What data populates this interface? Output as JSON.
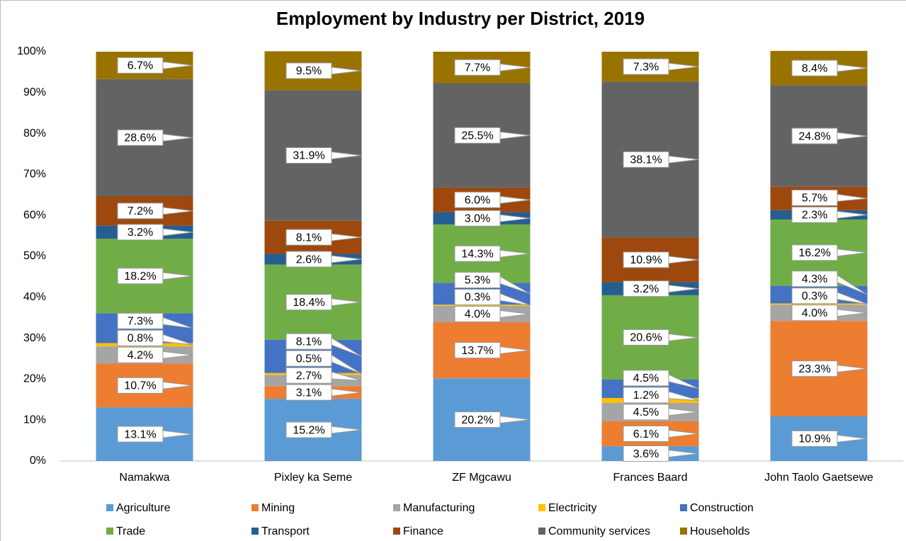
{
  "chart_data": {
    "type": "stacked_bar",
    "title": "Employment by Industry per District, 2019",
    "categories": [
      "Namakwa",
      "Pixley ka Seme",
      "ZF Mgcawu",
      "Frances Baard",
      "John Taolo Gaetsewe"
    ],
    "series": [
      {
        "name": "Agriculture",
        "color": "#5b9bd5",
        "values": [
          13.1,
          15.2,
          20.2,
          3.6,
          10.9
        ],
        "value_labels": [
          "13.1%",
          "15.2%",
          "20.2%",
          "3.6%",
          "10.9%"
        ]
      },
      {
        "name": "Mining",
        "color": "#ed7d31",
        "values": [
          10.7,
          3.1,
          13.7,
          6.1,
          23.3
        ],
        "value_labels": [
          "10.7%",
          "3.1%",
          "13.7%",
          "6.1%",
          "23.3%"
        ]
      },
      {
        "name": "Manufacturing",
        "color": "#a5a5a5",
        "values": [
          4.2,
          2.7,
          4.0,
          4.5,
          4.0
        ],
        "value_labels": [
          "4.2%",
          "2.7%",
          "4.0%",
          "4.5%",
          "4.0%"
        ]
      },
      {
        "name": "Electricity",
        "color": "#ffc000",
        "values": [
          0.8,
          0.5,
          0.3,
          1.2,
          0.3
        ],
        "value_labels": [
          "0.8%",
          "0.5%",
          "0.3%",
          "1.2%",
          "0.3%"
        ]
      },
      {
        "name": "Construction",
        "color": "#4472c4",
        "values": [
          7.3,
          8.1,
          5.3,
          4.5,
          4.3
        ],
        "value_labels": [
          "7.3%",
          "8.1%",
          "5.3%",
          "4.5%",
          "4.3%"
        ]
      },
      {
        "name": "Trade",
        "color": "#70ad47",
        "values": [
          18.2,
          18.4,
          14.3,
          20.6,
          16.2
        ],
        "value_labels": [
          "18.2%",
          "18.4%",
          "14.3%",
          "20.6%",
          "16.2%"
        ]
      },
      {
        "name": "Transport",
        "color": "#255e91",
        "values": [
          3.2,
          2.6,
          3.0,
          3.2,
          2.3
        ],
        "value_labels": [
          "3.2%",
          "2.6%",
          "3.0%",
          "3.2%",
          "2.3%"
        ]
      },
      {
        "name": "Finance",
        "color": "#9e480e",
        "values": [
          7.2,
          8.1,
          6.0,
          10.9,
          5.7
        ],
        "value_labels": [
          "7.2%",
          "8.1%",
          "6.0%",
          "10.9%",
          "5.7%"
        ]
      },
      {
        "name": "Community services",
        "color": "#636363",
        "values": [
          28.6,
          31.9,
          25.5,
          38.1,
          24.8
        ],
        "value_labels": [
          "28.6%",
          "31.9%",
          "25.5%",
          "38.1%",
          "24.8%"
        ]
      },
      {
        "name": "Households",
        "color": "#997300",
        "values": [
          6.7,
          9.5,
          7.7,
          7.3,
          8.4
        ],
        "value_labels": [
          "6.7%",
          "9.5%",
          "7.7%",
          "7.3%",
          "8.4%"
        ]
      }
    ],
    "ylim": [
      0,
      100
    ],
    "yticks": [
      {
        "value": 0,
        "label": "0%"
      },
      {
        "value": 10,
        "label": "10%"
      },
      {
        "value": 20,
        "label": "20%"
      },
      {
        "value": 30,
        "label": "30%"
      },
      {
        "value": 40,
        "label": "40%"
      },
      {
        "value": 50,
        "label": "50%"
      },
      {
        "value": 60,
        "label": "60%"
      },
      {
        "value": 70,
        "label": "70%"
      },
      {
        "value": 80,
        "label": "80%"
      },
      {
        "value": 90,
        "label": "90%"
      },
      {
        "value": 100,
        "label": "100%"
      }
    ],
    "grid": false,
    "legend": "bottom"
  }
}
